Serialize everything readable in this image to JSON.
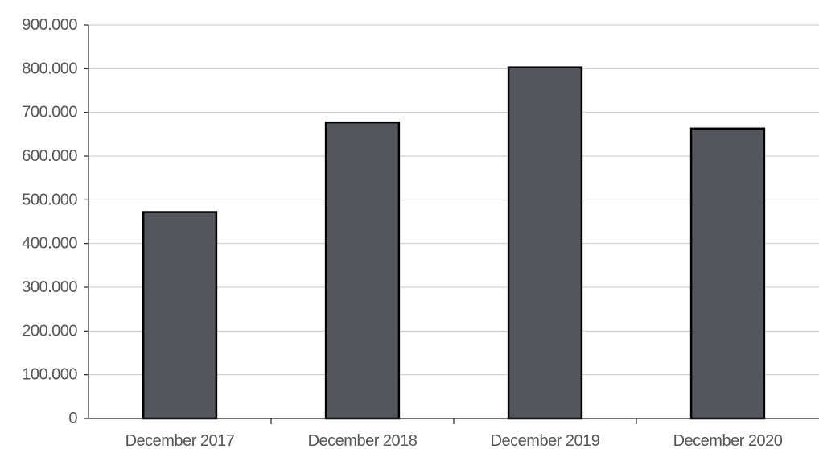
{
  "chart_data": {
    "type": "bar",
    "title": "",
    "xlabel": "",
    "ylabel": "",
    "categories": [
      "December 2017",
      "December 2018",
      "December 2019",
      "December 2020"
    ],
    "values": [
      472000,
      677000,
      803000,
      663000
    ],
    "ylim": [
      0,
      900000
    ],
    "yticks": [
      0,
      100000,
      200000,
      300000,
      400000,
      500000,
      600000,
      700000,
      800000,
      900000
    ],
    "ytick_labels": [
      "0",
      "100.000",
      "200.000",
      "300.000",
      "400.000",
      "500.000",
      "600.000",
      "700.000",
      "800.000",
      "900.000"
    ],
    "grid": true,
    "legend": "none",
    "colors": {
      "bar_fill": "#53565c",
      "bar_stroke": "#000000",
      "grid": "#c9c9c9",
      "axis": "#222222",
      "tick_text": "#555555"
    }
  }
}
